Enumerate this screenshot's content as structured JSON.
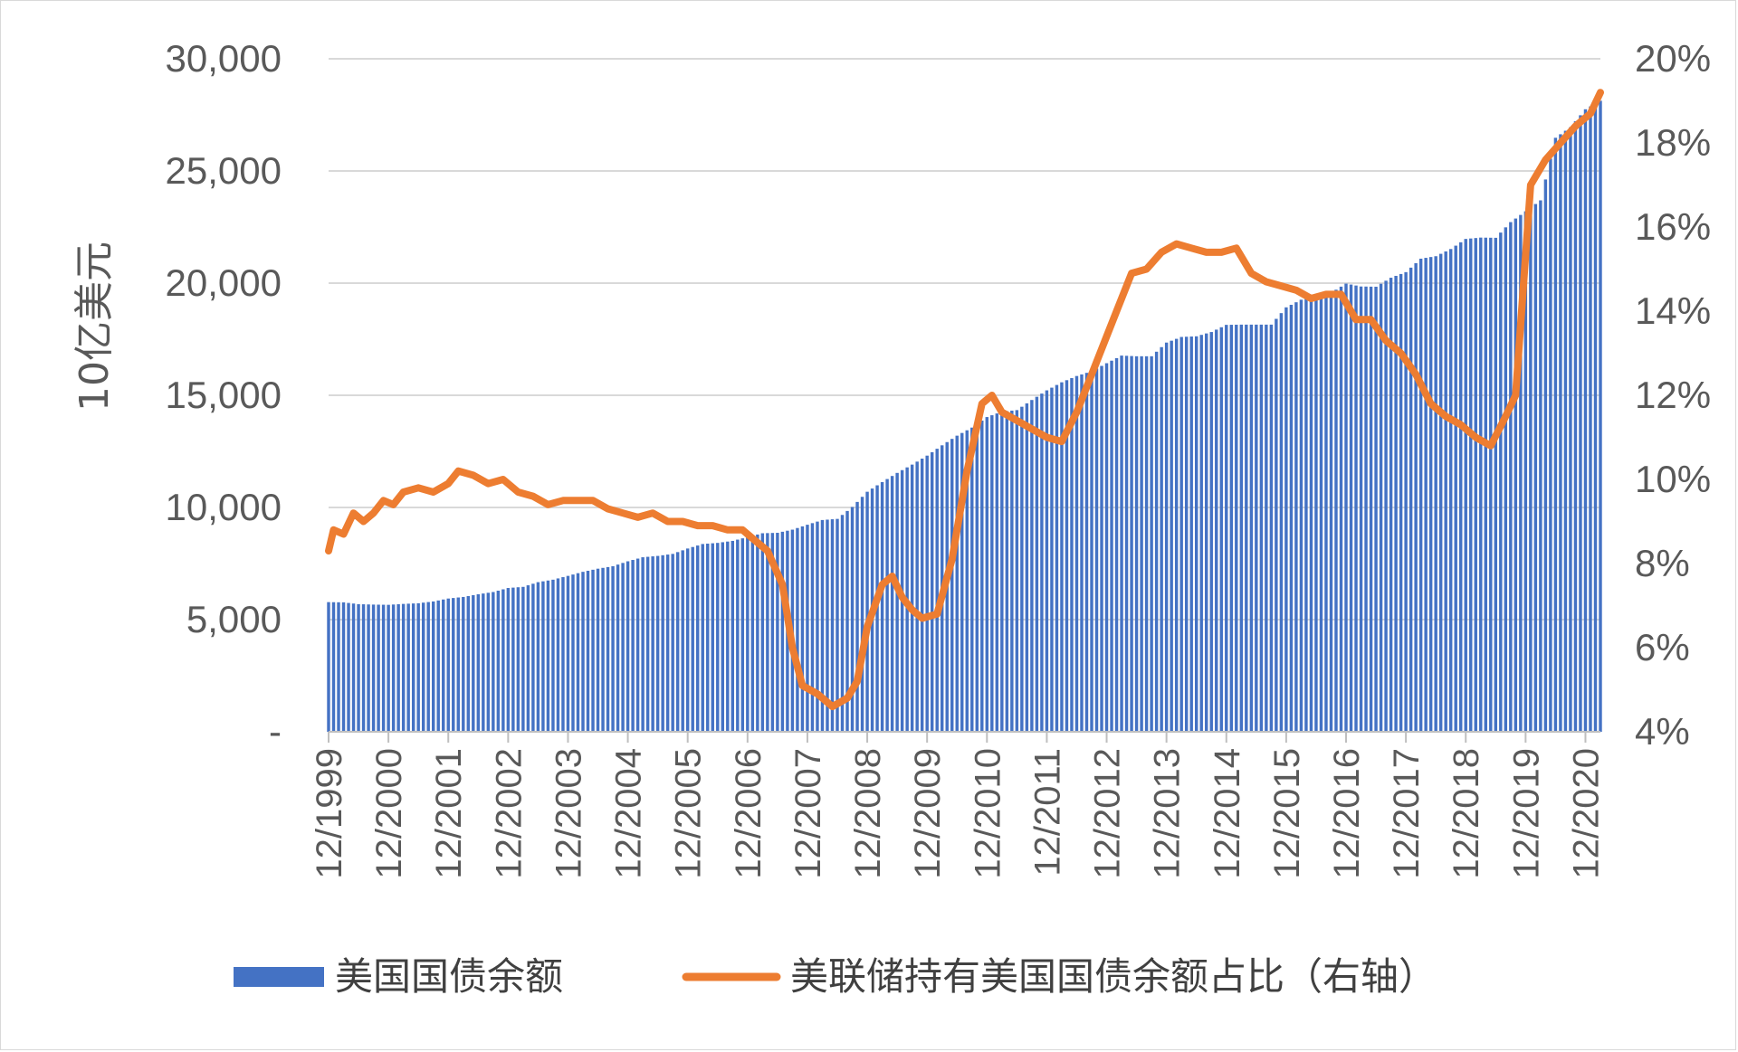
{
  "chart_data": {
    "type": "bar+line",
    "ylabel": "10亿美元",
    "ylim": [
      0,
      30000
    ],
    "y_ticks": [
      "-",
      "5,000",
      "10,000",
      "15,000",
      "20,000",
      "25,000",
      "30,000"
    ],
    "y_tick_values": [
      0,
      5000,
      10000,
      15000,
      20000,
      25000,
      30000
    ],
    "y2lim": [
      4,
      20
    ],
    "y2_ticks": [
      "4%",
      "6%",
      "8%",
      "10%",
      "12%",
      "14%",
      "16%",
      "18%",
      "20%"
    ],
    "y2_tick_values": [
      4,
      6,
      8,
      10,
      12,
      14,
      16,
      18,
      20
    ],
    "x_ticks": [
      "12/1999",
      "12/2000",
      "12/2001",
      "12/2002",
      "12/2003",
      "12/2004",
      "12/2005",
      "12/2006",
      "12/2007",
      "12/2008",
      "12/2009",
      "12/2010",
      "12/2011",
      "12/2012",
      "12/2013",
      "12/2014",
      "12/2015",
      "12/2016",
      "12/2017",
      "12/2018",
      "12/2019",
      "12/2020"
    ],
    "x_start": "1999-12",
    "x_end": "2021-03",
    "grid": true,
    "legend_position": "bottom",
    "series": [
      {
        "name": "美国国债余额",
        "type": "bar",
        "axis": "left",
        "color": "#4472C4",
        "points": [
          [
            "1999-12",
            5780
          ],
          [
            "2000-03",
            5770
          ],
          [
            "2000-06",
            5690
          ],
          [
            "2000-09",
            5670
          ],
          [
            "2000-12",
            5660
          ],
          [
            "2001-03",
            5700
          ],
          [
            "2001-06",
            5730
          ],
          [
            "2001-09",
            5810
          ],
          [
            "2001-12",
            5940
          ],
          [
            "2002-03",
            6010
          ],
          [
            "2002-06",
            6130
          ],
          [
            "2002-09",
            6230
          ],
          [
            "2002-12",
            6410
          ],
          [
            "2003-03",
            6460
          ],
          [
            "2003-06",
            6670
          ],
          [
            "2003-09",
            6780
          ],
          [
            "2003-12",
            6950
          ],
          [
            "2004-03",
            7130
          ],
          [
            "2004-06",
            7270
          ],
          [
            "2004-09",
            7380
          ],
          [
            "2004-12",
            7600
          ],
          [
            "2005-03",
            7780
          ],
          [
            "2005-06",
            7840
          ],
          [
            "2005-09",
            7930
          ],
          [
            "2005-12",
            8170
          ],
          [
            "2006-03",
            8370
          ],
          [
            "2006-06",
            8420
          ],
          [
            "2006-09",
            8510
          ],
          [
            "2006-12",
            8680
          ],
          [
            "2007-03",
            8850
          ],
          [
            "2007-06",
            8870
          ],
          [
            "2007-09",
            9010
          ],
          [
            "2007-12",
            9230
          ],
          [
            "2008-03",
            9440
          ],
          [
            "2008-06",
            9490
          ],
          [
            "2008-09",
            10020
          ],
          [
            "2008-12",
            10700
          ],
          [
            "2009-03",
            11130
          ],
          [
            "2009-06",
            11540
          ],
          [
            "2009-09",
            11910
          ],
          [
            "2009-12",
            12310
          ],
          [
            "2010-03",
            12770
          ],
          [
            "2010-06",
            13200
          ],
          [
            "2010-09",
            13560
          ],
          [
            "2010-12",
            14030
          ],
          [
            "2011-03",
            14270
          ],
          [
            "2011-06",
            14340
          ],
          [
            "2011-09",
            14790
          ],
          [
            "2011-12",
            15220
          ],
          [
            "2012-03",
            15580
          ],
          [
            "2012-06",
            15860
          ],
          [
            "2012-09",
            16070
          ],
          [
            "2012-12",
            16430
          ],
          [
            "2013-03",
            16770
          ],
          [
            "2013-06",
            16740
          ],
          [
            "2013-09",
            16740
          ],
          [
            "2013-12",
            17350
          ],
          [
            "2014-03",
            17600
          ],
          [
            "2014-06",
            17630
          ],
          [
            "2014-09",
            17820
          ],
          [
            "2014-12",
            18140
          ],
          [
            "2015-03",
            18150
          ],
          [
            "2015-06",
            18150
          ],
          [
            "2015-09",
            18150
          ],
          [
            "2015-12",
            18920
          ],
          [
            "2016-03",
            19260
          ],
          [
            "2016-06",
            19380
          ],
          [
            "2016-09",
            19570
          ],
          [
            "2016-12",
            19980
          ],
          [
            "2017-03",
            19850
          ],
          [
            "2017-06",
            19840
          ],
          [
            "2017-09",
            20240
          ],
          [
            "2017-12",
            20490
          ],
          [
            "2018-03",
            21090
          ],
          [
            "2018-06",
            21200
          ],
          [
            "2018-09",
            21520
          ],
          [
            "2018-12",
            21970
          ],
          [
            "2019-03",
            22030
          ],
          [
            "2019-06",
            22020
          ],
          [
            "2019-09",
            22720
          ],
          [
            "2019-12",
            23200
          ],
          [
            "2020-03",
            23690
          ],
          [
            "2020-06",
            26480
          ],
          [
            "2020-09",
            26950
          ],
          [
            "2020-12",
            27750
          ],
          [
            "2021-03",
            28130
          ]
        ]
      },
      {
        "name": "美联储持有美国国债余额占比（右轴）",
        "type": "line",
        "axis": "right",
        "color": "#ED7D31",
        "points": [
          [
            "1999-12",
            8.3
          ],
          [
            "2000-01",
            8.8
          ],
          [
            "2000-03",
            8.7
          ],
          [
            "2000-05",
            9.2
          ],
          [
            "2000-07",
            9.0
          ],
          [
            "2000-09",
            9.2
          ],
          [
            "2000-11",
            9.5
          ],
          [
            "2001-01",
            9.4
          ],
          [
            "2001-03",
            9.7
          ],
          [
            "2001-06",
            9.8
          ],
          [
            "2001-09",
            9.7
          ],
          [
            "2001-12",
            9.9
          ],
          [
            "2002-02",
            10.2
          ],
          [
            "2002-05",
            10.1
          ],
          [
            "2002-08",
            9.9
          ],
          [
            "2002-11",
            10.0
          ],
          [
            "2003-02",
            9.7
          ],
          [
            "2003-05",
            9.6
          ],
          [
            "2003-08",
            9.4
          ],
          [
            "2003-11",
            9.5
          ],
          [
            "2004-02",
            9.5
          ],
          [
            "2004-05",
            9.5
          ],
          [
            "2004-08",
            9.3
          ],
          [
            "2004-11",
            9.2
          ],
          [
            "2005-02",
            9.1
          ],
          [
            "2005-05",
            9.2
          ],
          [
            "2005-08",
            9.0
          ],
          [
            "2005-11",
            9.0
          ],
          [
            "2006-02",
            8.9
          ],
          [
            "2006-05",
            8.9
          ],
          [
            "2006-08",
            8.8
          ],
          [
            "2006-11",
            8.8
          ],
          [
            "2007-02",
            8.5
          ],
          [
            "2007-04",
            8.3
          ],
          [
            "2007-07",
            7.5
          ],
          [
            "2007-09",
            6.0
          ],
          [
            "2007-11",
            5.1
          ],
          [
            "2008-02",
            4.9
          ],
          [
            "2008-05",
            4.6
          ],
          [
            "2008-08",
            4.8
          ],
          [
            "2008-10",
            5.2
          ],
          [
            "2008-12",
            6.5
          ],
          [
            "2009-03",
            7.5
          ],
          [
            "2009-05",
            7.7
          ],
          [
            "2009-07",
            7.2
          ],
          [
            "2009-09",
            6.9
          ],
          [
            "2009-11",
            6.7
          ],
          [
            "2010-02",
            6.8
          ],
          [
            "2010-05",
            8.1
          ],
          [
            "2010-08",
            10.2
          ],
          [
            "2010-11",
            11.8
          ],
          [
            "2011-01",
            12.0
          ],
          [
            "2011-03",
            11.6
          ],
          [
            "2011-06",
            11.4
          ],
          [
            "2011-09",
            11.2
          ],
          [
            "2011-12",
            11.0
          ],
          [
            "2012-03",
            10.9
          ],
          [
            "2012-06",
            11.6
          ],
          [
            "2012-09",
            12.5
          ],
          [
            "2012-12",
            13.4
          ],
          [
            "2013-02",
            14.0
          ],
          [
            "2013-05",
            14.9
          ],
          [
            "2013-08",
            15.0
          ],
          [
            "2013-11",
            15.4
          ],
          [
            "2014-02",
            15.6
          ],
          [
            "2014-05",
            15.5
          ],
          [
            "2014-08",
            15.4
          ],
          [
            "2014-11",
            15.4
          ],
          [
            "2015-02",
            15.5
          ],
          [
            "2015-05",
            14.9
          ],
          [
            "2015-08",
            14.7
          ],
          [
            "2015-11",
            14.6
          ],
          [
            "2016-02",
            14.5
          ],
          [
            "2016-05",
            14.3
          ],
          [
            "2016-08",
            14.4
          ],
          [
            "2016-11",
            14.4
          ],
          [
            "2017-02",
            13.8
          ],
          [
            "2017-05",
            13.8
          ],
          [
            "2017-08",
            13.3
          ],
          [
            "2017-11",
            13.0
          ],
          [
            "2018-02",
            12.5
          ],
          [
            "2018-05",
            11.8
          ],
          [
            "2018-08",
            11.5
          ],
          [
            "2018-11",
            11.3
          ],
          [
            "2019-02",
            11.0
          ],
          [
            "2019-05",
            10.8
          ],
          [
            "2019-08",
            11.5
          ],
          [
            "2019-10",
            12.0
          ],
          [
            "2020-01",
            17.0
          ],
          [
            "2020-04",
            17.6
          ],
          [
            "2020-07",
            18.0
          ],
          [
            "2020-10",
            18.4
          ],
          [
            "2021-01",
            18.7
          ],
          [
            "2021-03",
            19.2
          ]
        ]
      }
    ]
  }
}
